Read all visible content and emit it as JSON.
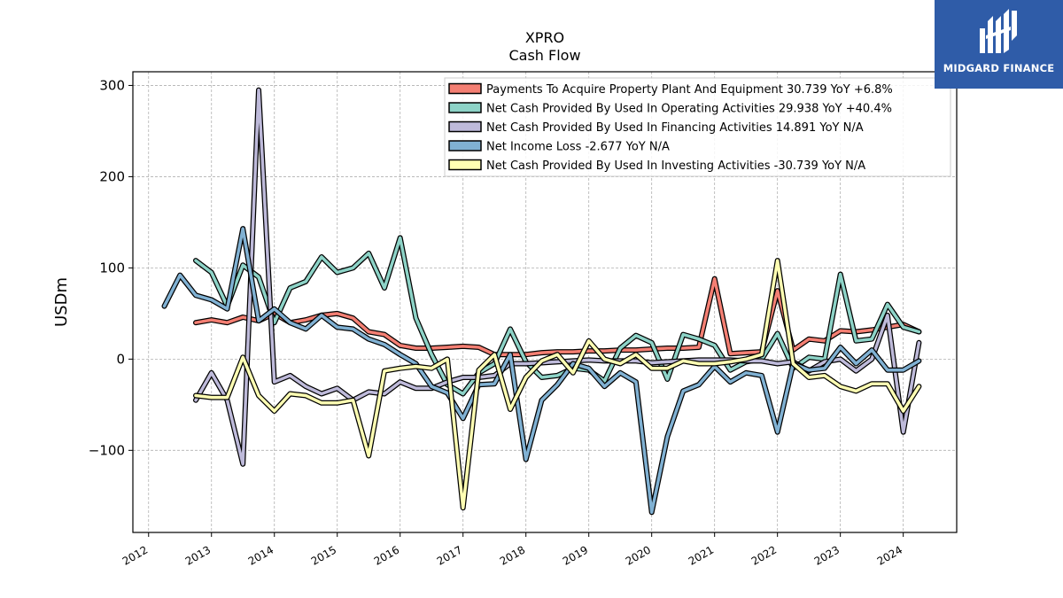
{
  "chart_data": {
    "type": "line",
    "title": "XPRO",
    "subtitle": "Cash Flow",
    "ylabel": "USDm",
    "xlabel": "",
    "ylim": [
      -190,
      315
    ],
    "xlim": [
      2011.75,
      2024.85
    ],
    "yticks": [
      300,
      200,
      100,
      0,
      -100
    ],
    "ytick_labels": [
      "300",
      "200",
      "100",
      "0",
      "−100"
    ],
    "xticks": [
      2012,
      2013,
      2014,
      2015,
      2016,
      2017,
      2018,
      2019,
      2020,
      2021,
      2022,
      2023,
      2024
    ],
    "xtick_labels": [
      "2012",
      "2013",
      "2014",
      "2015",
      "2016",
      "2017",
      "2018",
      "2019",
      "2020",
      "2021",
      "2022",
      "2023",
      "2024"
    ],
    "grid": true,
    "legend_position": "top-right",
    "series": [
      {
        "name": "Payments To Acquire Property Plant And Equipment  30.739 YoY +6.8%",
        "color": "#f47f73",
        "x": [
          2012.75,
          2013.0,
          2013.25,
          2013.5,
          2013.75,
          2014.0,
          2014.25,
          2014.5,
          2014.75,
          2015.0,
          2015.25,
          2015.5,
          2015.75,
          2016.0,
          2016.25,
          2016.5,
          2016.75,
          2017.0,
          2017.25,
          2017.5,
          2017.75,
          2018.0,
          2018.25,
          2018.5,
          2018.75,
          2019.0,
          2019.25,
          2019.5,
          2019.75,
          2020.0,
          2020.25,
          2020.5,
          2020.75,
          2021.0,
          2021.25,
          2021.5,
          2021.75,
          2022.0,
          2022.25,
          2022.5,
          2022.75,
          2023.0,
          2023.25,
          2023.5,
          2023.75,
          2024.0,
          2024.25
        ],
        "y": [
          40,
          43,
          40,
          46,
          42,
          50,
          40,
          43,
          48,
          50,
          45,
          30,
          27,
          15,
          12,
          12,
          13,
          14,
          13,
          5,
          5,
          5,
          7,
          8,
          8,
          9,
          9,
          10,
          10,
          11,
          12,
          12,
          13,
          88,
          6,
          7,
          8,
          75,
          10,
          22,
          20,
          31,
          30,
          32,
          35,
          38,
          30
        ]
      },
      {
        "name": "Net Cash Provided By Used In Operating Activities  29.938 YoY +40.4%",
        "color": "#8dd3c7",
        "x": [
          2012.75,
          2013.0,
          2013.25,
          2013.5,
          2013.75,
          2014.0,
          2014.25,
          2014.5,
          2014.75,
          2015.0,
          2015.25,
          2015.5,
          2015.75,
          2016.0,
          2016.25,
          2016.5,
          2016.75,
          2017.0,
          2017.25,
          2017.5,
          2017.75,
          2018.0,
          2018.25,
          2018.5,
          2018.75,
          2019.0,
          2019.25,
          2019.5,
          2019.75,
          2020.0,
          2020.25,
          2020.5,
          2020.75,
          2021.0,
          2021.25,
          2021.5,
          2021.75,
          2022.0,
          2022.25,
          2022.5,
          2022.75,
          2023.0,
          2023.25,
          2023.5,
          2023.75,
          2024.0,
          2024.25
        ],
        "y": [
          108,
          95,
          58,
          103,
          90,
          40,
          78,
          85,
          112,
          95,
          100,
          116,
          78,
          133,
          45,
          5,
          -28,
          -38,
          -15,
          -5,
          33,
          -3,
          -20,
          -18,
          -10,
          -12,
          -24,
          12,
          26,
          18,
          -22,
          27,
          22,
          15,
          -12,
          -3,
          0,
          28,
          -10,
          2,
          0,
          93,
          20,
          22,
          60,
          35,
          30
        ]
      },
      {
        "name": "Net Cash Provided By Used In Financing Activities  14.891 YoY N/A",
        "color": "#bebada",
        "x": [
          2012.75,
          2013.0,
          2013.25,
          2013.5,
          2013.75,
          2014.0,
          2014.25,
          2014.5,
          2014.75,
          2015.0,
          2015.25,
          2015.5,
          2015.75,
          2016.0,
          2016.25,
          2016.5,
          2016.75,
          2017.0,
          2017.25,
          2017.5,
          2017.75,
          2018.0,
          2018.25,
          2018.5,
          2018.75,
          2019.0,
          2019.25,
          2019.5,
          2019.75,
          2020.0,
          2020.25,
          2020.5,
          2020.75,
          2021.0,
          2021.25,
          2021.5,
          2021.75,
          2022.0,
          2022.25,
          2022.5,
          2022.75,
          2023.0,
          2023.25,
          2023.5,
          2023.75,
          2024.0,
          2024.25
        ],
        "y": [
          -45,
          -15,
          -45,
          -115,
          295,
          -25,
          -18,
          -30,
          -38,
          -32,
          -45,
          -36,
          -38,
          -25,
          -32,
          -32,
          -25,
          -20,
          -20,
          -18,
          -5,
          -5,
          -4,
          -3,
          -2,
          -1,
          -2,
          -2,
          -2,
          -4,
          -3,
          -2,
          -1,
          -1,
          -1,
          -2,
          -2,
          -5,
          -3,
          -13,
          -3,
          0,
          -13,
          0,
          48,
          -80,
          18
        ]
      },
      {
        "name": "Net Income Loss  -2.677 YoY N/A",
        "color": "#80b1d3",
        "x": [
          2012.25,
          2012.5,
          2012.75,
          2013.0,
          2013.25,
          2013.5,
          2013.75,
          2014.0,
          2014.25,
          2014.5,
          2014.75,
          2015.0,
          2015.25,
          2015.5,
          2015.75,
          2016.0,
          2016.25,
          2016.5,
          2016.75,
          2017.0,
          2017.25,
          2017.5,
          2017.75,
          2018.0,
          2018.25,
          2018.5,
          2018.75,
          2019.0,
          2019.25,
          2019.5,
          2019.75,
          2020.0,
          2020.25,
          2020.5,
          2020.75,
          2021.0,
          2021.25,
          2021.5,
          2021.75,
          2022.0,
          2022.25,
          2022.5,
          2022.75,
          2023.0,
          2023.25,
          2023.5,
          2023.75,
          2024.0,
          2024.25
        ],
        "y": [
          58,
          92,
          70,
          65,
          55,
          143,
          42,
          55,
          40,
          33,
          48,
          35,
          33,
          22,
          16,
          5,
          -5,
          -30,
          -37,
          -65,
          -28,
          -27,
          5,
          -110,
          -45,
          -28,
          -5,
          -10,
          -30,
          -15,
          -25,
          -168,
          -85,
          -35,
          -28,
          -8,
          -25,
          -15,
          -18,
          -80,
          -5,
          -12,
          -10,
          13,
          -5,
          10,
          -12,
          -12,
          -2
        ]
      },
      {
        "name": "Net Cash Provided By Used In Investing Activities  -30.739 YoY N/A",
        "color": "#ffffb3",
        "x": [
          2012.75,
          2013.0,
          2013.25,
          2013.5,
          2013.75,
          2014.0,
          2014.25,
          2014.5,
          2014.75,
          2015.0,
          2015.25,
          2015.5,
          2015.75,
          2016.0,
          2016.25,
          2016.5,
          2016.75,
          2017.0,
          2017.25,
          2017.5,
          2017.75,
          2018.0,
          2018.25,
          2018.5,
          2018.75,
          2019.0,
          2019.25,
          2019.5,
          2019.75,
          2020.0,
          2020.25,
          2020.5,
          2020.75,
          2021.0,
          2021.25,
          2021.5,
          2021.75,
          2022.0,
          2022.25,
          2022.5,
          2022.75,
          2023.0,
          2023.25,
          2023.5,
          2023.75,
          2024.0,
          2024.25
        ],
        "y": [
          -40,
          -42,
          -42,
          2,
          -40,
          -57,
          -38,
          -40,
          -48,
          -48,
          -45,
          -106,
          -13,
          -10,
          -8,
          -10,
          0,
          -163,
          -12,
          5,
          -55,
          -20,
          -2,
          5,
          -15,
          20,
          0,
          -5,
          5,
          -10,
          -10,
          -2,
          -5,
          -5,
          -3,
          0,
          5,
          108,
          -5,
          -20,
          -18,
          -30,
          -35,
          -27,
          -27,
          -57,
          -30
        ]
      }
    ]
  },
  "logo": {
    "text": "MIDGARD FINANCE",
    "background": "#2f5ca8"
  }
}
